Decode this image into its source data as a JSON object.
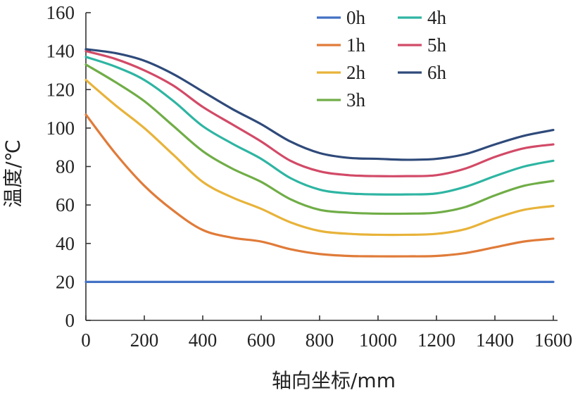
{
  "chart_data": {
    "type": "line",
    "xlabel": "轴向坐标/mm",
    "ylabel": "温度/℃",
    "xlim": [
      0,
      1600
    ],
    "ylim": [
      0,
      160
    ],
    "xticks": [
      "0",
      "200",
      "400",
      "600",
      "800",
      "1000",
      "1200",
      "1400",
      "1600"
    ],
    "yticks": [
      "0",
      "20",
      "40",
      "60",
      "80",
      "100",
      "120",
      "140",
      "160"
    ],
    "grid": false,
    "legend_position": "top-right",
    "x": [
      0,
      100,
      200,
      300,
      400,
      500,
      600,
      700,
      800,
      900,
      1000,
      1100,
      1200,
      1300,
      1400,
      1500,
      1600
    ],
    "series": [
      {
        "name": "0h",
        "color": "#4472C4",
        "values": [
          20,
          20,
          20,
          20,
          20,
          20,
          20,
          20,
          20,
          20,
          20,
          20,
          20,
          20,
          20,
          20,
          20
        ]
      },
      {
        "name": "1h",
        "color": "#E07B39",
        "values": [
          107,
          87,
          70,
          57,
          47,
          43,
          41,
          37,
          34.5,
          33.5,
          33.3,
          33.3,
          33.5,
          35,
          38,
          41,
          42.5
        ]
      },
      {
        "name": "2h",
        "color": "#E8B33A",
        "values": [
          125,
          112,
          100,
          86,
          72,
          64,
          58,
          51,
          46.5,
          45,
          44.5,
          44.5,
          45,
          47.5,
          53,
          57.5,
          59.5
        ]
      },
      {
        "name": "3h",
        "color": "#70AD47",
        "values": [
          133,
          124,
          114,
          101,
          88,
          79,
          72,
          63,
          57.5,
          56,
          55.5,
          55.5,
          56,
          59,
          65,
          70,
          72.5
        ]
      },
      {
        "name": "4h",
        "color": "#2EB5A3",
        "values": [
          137,
          132,
          125,
          114,
          101,
          92,
          84,
          74,
          68,
          66,
          65.5,
          65.5,
          66,
          69.5,
          75,
          80,
          83
        ]
      },
      {
        "name": "5h",
        "color": "#D24A67",
        "values": [
          140,
          136,
          130,
          122,
          111,
          102,
          93,
          83,
          77.5,
          75.5,
          75,
          75,
          75.5,
          79,
          85,
          89.5,
          91.5
        ]
      },
      {
        "name": "6h",
        "color": "#2F4A7A",
        "values": [
          141,
          139,
          135,
          128,
          119,
          110,
          102,
          93,
          87,
          84.5,
          84,
          83.5,
          84,
          86.5,
          91.5,
          96,
          99
        ]
      }
    ]
  }
}
